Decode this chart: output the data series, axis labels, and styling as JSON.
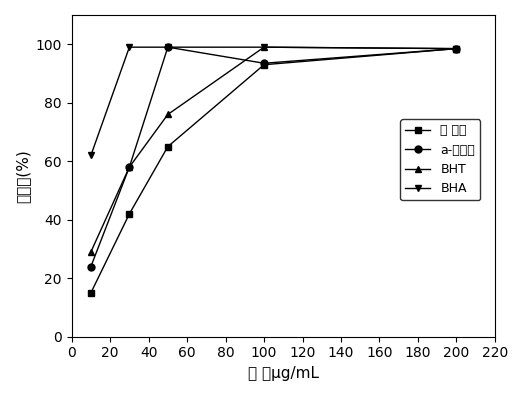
{
  "title": "",
  "xlabel": "浓 度μg/mL",
  "ylabel": "清除率(%)",
  "xlim": [
    0,
    220
  ],
  "ylim": [
    0,
    110
  ],
  "xticks": [
    0,
    20,
    40,
    60,
    80,
    100,
    120,
    140,
    160,
    180,
    200,
    220
  ],
  "yticks": [
    0,
    20,
    40,
    60,
    80,
    100
  ],
  "series": [
    {
      "label": "总 多酚",
      "x": [
        10,
        30,
        50,
        100,
        200
      ],
      "y": [
        15,
        42,
        65,
        93,
        98.5
      ],
      "marker": "s",
      "color": "#000000",
      "linestyle": "-"
    },
    {
      "label": "a-生育酚",
      "x": [
        10,
        30,
        50,
        100,
        200
      ],
      "y": [
        24,
        58,
        99,
        93.5,
        98.5
      ],
      "marker": "o",
      "color": "#000000",
      "linestyle": "-"
    },
    {
      "label": "BHT",
      "x": [
        10,
        30,
        50,
        100,
        200
      ],
      "y": [
        29,
        58,
        76,
        99,
        98.5
      ],
      "marker": "^",
      "color": "#000000",
      "linestyle": "-"
    },
    {
      "label": "BHA",
      "x": [
        10,
        30,
        50,
        100,
        200
      ],
      "y": [
        62,
        99,
        99,
        99,
        98.5
      ],
      "marker": "v",
      "color": "#000000",
      "linestyle": "-"
    }
  ],
  "legend_loc": "center right",
  "background_color": "#ffffff",
  "font_size": 11,
  "tick_font_size": 10
}
